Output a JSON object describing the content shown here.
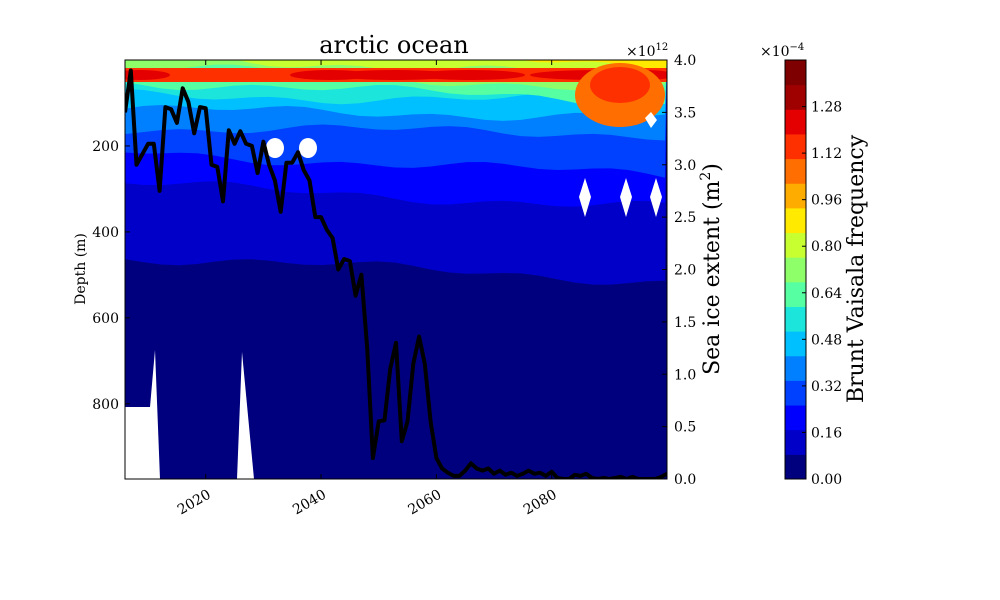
{
  "chart_data": [
    {
      "type": "heatmap",
      "title": "arctic ocean",
      "ylabel": "Depth (m)",
      "y2label_main": "Sea ice extent (m",
      "y2label_sup": "2",
      "y2label_end": ")",
      "y2_multiplier": "×10",
      "y2_multiplier_exp": "12",
      "xlim": [
        2006,
        2100
      ],
      "ylim": [
        975,
        0
      ],
      "y2lim": [
        0,
        4.0
      ],
      "xticks": [
        2020,
        2040,
        2060,
        2080
      ],
      "xticklabels": [
        "2020",
        "2040",
        "2060",
        "2080"
      ],
      "yticks": [
        200,
        400,
        600,
        800
      ],
      "yticklabels": [
        "200",
        "400",
        "600",
        "800"
      ],
      "y2ticks": [
        0.0,
        0.5,
        1.0,
        1.5,
        2.0,
        2.5,
        3.0,
        3.5,
        4.0
      ],
      "y2ticklabels": [
        "0.0",
        "0.5",
        "1.0",
        "1.5",
        "2.0",
        "2.5",
        "3.0",
        "3.5",
        "4.0"
      ],
      "grid": false,
      "series": [
        {
          "name": "",
          "type": "line",
          "color": "#000000",
          "x": [
            2006,
            2007,
            2008,
            2009,
            2010,
            2011,
            2012,
            2013,
            2014,
            2015,
            2016,
            2017,
            2018,
            2019,
            2020,
            2021,
            2022,
            2023,
            2024,
            2025,
            2026,
            2027,
            2028,
            2029,
            2030,
            2031,
            2032,
            2033,
            2034,
            2035,
            2036,
            2037,
            2038,
            2039,
            2040,
            2041,
            2042,
            2043,
            2044,
            2045,
            2046,
            2047,
            2048,
            2049,
            2050,
            2051,
            2052,
            2053,
            2054,
            2055,
            2056,
            2057,
            2058,
            2059,
            2060,
            2061,
            2062,
            2063,
            2064,
            2065,
            2066,
            2067,
            2068,
            2069,
            2070,
            2071,
            2072,
            2073,
            2074,
            2075,
            2076,
            2077,
            2078,
            2079,
            2080,
            2081,
            2082,
            2083,
            2084,
            2085,
            2086,
            2087,
            2088,
            2089,
            2090,
            2091,
            2092,
            2093,
            2094,
            2095,
            2096,
            2097,
            2098,
            2099,
            2100
          ],
          "y": [
            3.5,
            3.9,
            3.0,
            3.1,
            3.2,
            3.2,
            2.75,
            3.55,
            3.53,
            3.4,
            3.73,
            3.6,
            3.3,
            3.55,
            3.54,
            3.0,
            2.98,
            2.65,
            3.33,
            3.2,
            3.32,
            3.2,
            3.18,
            2.92,
            3.22,
            3.0,
            2.85,
            2.55,
            3.02,
            3.02,
            3.12,
            2.95,
            2.85,
            2.5,
            2.5,
            2.38,
            2.3,
            2.0,
            2.1,
            2.08,
            1.75,
            1.95,
            1.25,
            0.2,
            0.55,
            0.56,
            1.05,
            1.3,
            0.36,
            0.55,
            1.1,
            1.36,
            1.1,
            0.55,
            0.2,
            0.1,
            0.06,
            0.03,
            0.03,
            0.08,
            0.15,
            0.1,
            0.08,
            0.1,
            0.05,
            0.08,
            0.04,
            0.06,
            0.03,
            0.05,
            0.08,
            0.05,
            0.06,
            0.03,
            0.07,
            0.01,
            0.0,
            0.0,
            0.04,
            0.03,
            0.05,
            0.01,
            0.0,
            0.01,
            0.0,
            0.01,
            0.02,
            0.0,
            0.02,
            0.0,
            0.0,
            0.0,
            0.0,
            0.02,
            0.05
          ]
        }
      ]
    },
    {
      "type": "colorbar",
      "label": "Brunt Vaisala frequency",
      "multiplier": "×10",
      "multiplier_exp": "−4",
      "vmin": 0.0,
      "vmax": 1.44,
      "ticks": [
        0.0,
        0.16,
        0.32,
        0.48,
        0.64,
        0.8,
        0.96,
        1.12,
        1.28
      ],
      "ticklabels": [
        "0.00",
        "0.16",
        "0.32",
        "0.48",
        "0.64",
        "0.80",
        "0.96",
        "1.12",
        "1.28"
      ],
      "colormap": [
        "#00007f",
        "#0000c8",
        "#0000ff",
        "#0040ff",
        "#0080ff",
        "#00c0ff",
        "#1ce6db",
        "#55ffa2",
        "#8eff69",
        "#c8ff30",
        "#ffea00",
        "#ffac00",
        "#ff6e00",
        "#ff3000",
        "#e40000",
        "#9f0000",
        "#7f0000"
      ]
    }
  ]
}
